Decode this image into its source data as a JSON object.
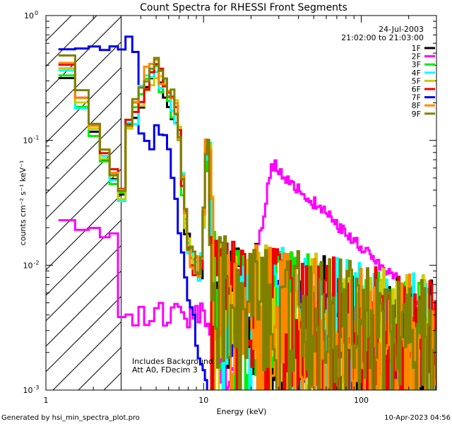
{
  "chart_data": {
    "type": "line",
    "title": "Count Spectra for RHESSI Front Segments",
    "xlabel": "Energy (keV)",
    "ylabel": "counts cm⁻² s⁻¹ keV⁻¹",
    "xscale": "log",
    "yscale": "log",
    "xlim": [
      1,
      300
    ],
    "ylim": [
      0.001,
      1
    ],
    "x_ticks": [
      {
        "value": 1,
        "label": "1"
      },
      {
        "value": 10,
        "label": "10"
      },
      {
        "value": 100,
        "label": "100"
      }
    ],
    "y_ticks": [
      {
        "value": 1,
        "base": "10",
        "exp": "0"
      },
      {
        "value": 0.1,
        "base": "10",
        "exp": "-1"
      },
      {
        "value": 0.01,
        "base": "10",
        "exp": "-2"
      },
      {
        "value": 0.001,
        "base": "10",
        "exp": "-3"
      }
    ],
    "date": "24-Jul-2003",
    "time_range": "21:02:00 to 21:03:00",
    "shaded_region": {
      "from": 1,
      "to": 3
    },
    "annotations": [
      "Includes Background",
      "Att A0, FDecim 3"
    ],
    "legend_position": "top-right",
    "series": [
      {
        "name": "1F",
        "color": "#000000"
      },
      {
        "name": "2F",
        "color": "#ff00ff"
      },
      {
        "name": "3F",
        "color": "#00ee00"
      },
      {
        "name": "4F",
        "color": "#00ffff"
      },
      {
        "name": "5F",
        "color": "#cccc00"
      },
      {
        "name": "6F",
        "color": "#ee0000"
      },
      {
        "name": "7F",
        "color": "#0000ee"
      },
      {
        "name": "8F",
        "color": "#ff8800"
      },
      {
        "name": "9F",
        "color": "#808000"
      }
    ]
  },
  "footer": {
    "left": "Generated by hsi_min_spectra_plot.pro",
    "right": "10-Apr-2023 04:56"
  }
}
